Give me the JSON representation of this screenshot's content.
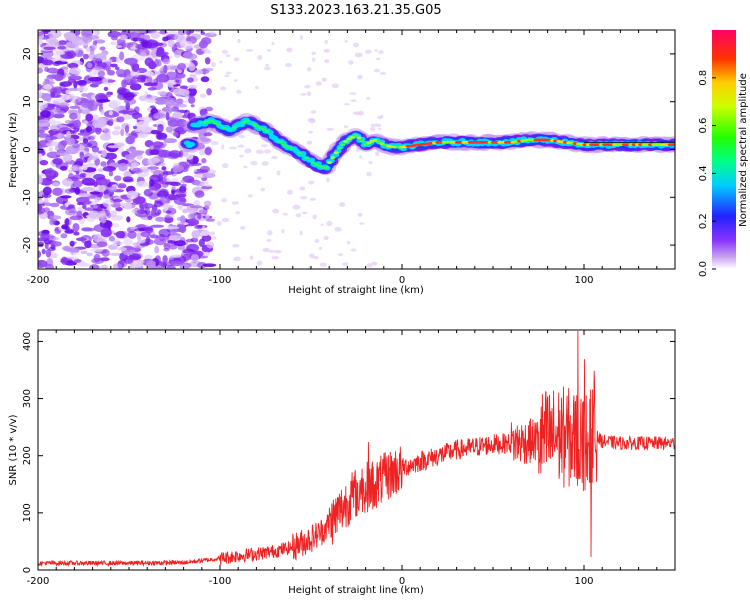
{
  "title": "S133.2023.163.21.35.G05",
  "chart_data": [
    {
      "type": "heatmap",
      "title": "S133.2023.163.21.35.G05",
      "xlabel": "Height of straight line (km)",
      "ylabel": "Frequency (Hz)",
      "xlim": [
        -200,
        150
      ],
      "ylim": [
        -25,
        25
      ],
      "xticks": [
        -200,
        -100,
        0,
        100
      ],
      "xtick_labels": [
        "-200",
        "-100",
        "0",
        "100"
      ],
      "yticks": [
        -20,
        -10,
        0,
        10,
        20
      ],
      "ytick_labels": [
        "-20",
        "-10",
        "0",
        "10",
        "20"
      ],
      "colorbar": {
        "label": "Normalized spectral amplitude",
        "range": [
          0,
          1
        ],
        "ticks": [
          0.0,
          0.2,
          0.4,
          0.6,
          0.8
        ],
        "tick_labels": [
          "0.0",
          "0.2",
          "0.4",
          "0.6",
          "0.8"
        ]
      },
      "ridge": {
        "description_points_x": [
          -115,
          -105,
          -95,
          -85,
          -75,
          -65,
          -55,
          -48,
          -42,
          -35,
          -30,
          -25,
          -20,
          -15,
          -10,
          -5,
          0,
          10,
          20,
          30,
          40,
          50,
          60,
          70,
          80,
          90,
          100,
          110,
          120,
          130,
          140,
          150
        ],
        "description_points_y": [
          5,
          6,
          4,
          6,
          4,
          1,
          -1,
          -3,
          -4,
          0,
          2,
          3,
          1,
          2,
          1,
          0.5,
          0.5,
          1,
          1.5,
          1.5,
          1.5,
          1.5,
          1.5,
          2,
          2,
          1.5,
          1,
          1,
          1,
          1,
          1,
          1
        ]
      }
    },
    {
      "type": "line",
      "xlabel": "Height of straight line (km)",
      "ylabel": "SNR (10 * v/v)",
      "xlim": [
        -200,
        150
      ],
      "ylim": [
        0,
        420
      ],
      "xticks": [
        -200,
        -100,
        0,
        100
      ],
      "xtick_labels": [
        "-200",
        "-100",
        "0",
        "100"
      ],
      "yticks": [
        0,
        100,
        200,
        300,
        400
      ],
      "ytick_labels": [
        "0",
        "100",
        "200",
        "300",
        "400"
      ],
      "color": "#ee2222",
      "series": [
        {
          "name": "SNR",
          "x": [
            -200,
            -150,
            -120,
            -100,
            -90,
            -80,
            -70,
            -60,
            -50,
            -45,
            -40,
            -35,
            -30,
            -25,
            -20,
            -15,
            -10,
            -5,
            0,
            10,
            20,
            30,
            40,
            50,
            60,
            70,
            80,
            85,
            90,
            95,
            100,
            103,
            105,
            108,
            110,
            120,
            130,
            140,
            150
          ],
          "y": [
            12,
            12,
            13,
            20,
            25,
            28,
            33,
            40,
            55,
            65,
            80,
            100,
            120,
            135,
            145,
            150,
            160,
            170,
            178,
            190,
            200,
            210,
            215,
            220,
            222,
            225,
            230,
            235,
            232,
            228,
            225,
            222,
            240,
            230,
            225,
            222,
            222,
            222,
            222
          ]
        }
      ]
    }
  ]
}
